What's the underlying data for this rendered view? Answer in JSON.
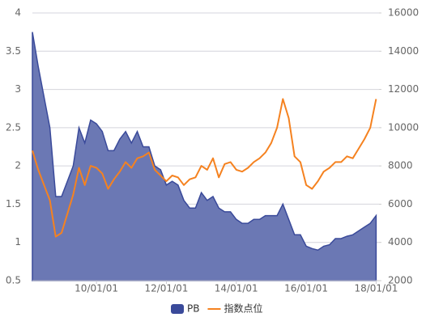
{
  "chart_data": {
    "type": "area-line",
    "x": [
      "08/03/01",
      "08/05/01",
      "08/07/01",
      "08/09/01",
      "08/11/01",
      "09/01/01",
      "09/03/01",
      "09/05/01",
      "09/07/01",
      "09/09/01",
      "09/11/01",
      "10/01/01",
      "10/03/01",
      "10/05/01",
      "10/07/01",
      "10/09/01",
      "10/11/01",
      "11/01/01",
      "11/03/01",
      "11/05/01",
      "11/07/01",
      "11/09/01",
      "11/11/01",
      "12/01/01",
      "12/03/01",
      "12/05/01",
      "12/07/01",
      "12/09/01",
      "12/11/01",
      "13/01/01",
      "13/03/01",
      "13/05/01",
      "13/07/01",
      "13/09/01",
      "13/11/01",
      "14/01/01",
      "14/03/01",
      "14/05/01",
      "14/07/01",
      "14/09/01",
      "14/11/01",
      "15/01/01",
      "15/03/01",
      "15/05/01",
      "15/07/01",
      "15/09/01",
      "15/11/01",
      "16/01/01",
      "16/03/01",
      "16/05/01",
      "16/07/01",
      "16/09/01",
      "16/11/01",
      "17/01/01",
      "17/03/01",
      "17/05/01",
      "17/07/01",
      "17/09/01",
      "17/11/01",
      "18/01/01"
    ],
    "series": [
      {
        "name": "PB",
        "color": "#3a4a9a",
        "fill": "#6b78b4",
        "axis": "y",
        "values": [
          3.75,
          3.3,
          2.9,
          2.5,
          1.6,
          1.6,
          1.8,
          2.0,
          2.5,
          2.3,
          2.6,
          2.55,
          2.45,
          2.2,
          2.2,
          2.35,
          2.45,
          2.3,
          2.45,
          2.25,
          2.25,
          2.0,
          1.95,
          1.75,
          1.8,
          1.75,
          1.55,
          1.45,
          1.45,
          1.65,
          1.55,
          1.6,
          1.45,
          1.4,
          1.4,
          1.3,
          1.25,
          1.25,
          1.3,
          1.3,
          1.35,
          1.35,
          1.35,
          1.5,
          1.3,
          1.1,
          1.1,
          0.95,
          0.92,
          0.9,
          0.95,
          0.97,
          1.05,
          1.05,
          1.08,
          1.1,
          1.15,
          1.2,
          1.25,
          1.35
        ]
      },
      {
        "name": "指数点位",
        "color": "#f58220",
        "axis": "y2",
        "values": [
          8800,
          7800,
          7000,
          6200,
          4300,
          4500,
          5500,
          6500,
          7900,
          7000,
          8000,
          7900,
          7600,
          6800,
          7300,
          7700,
          8200,
          7900,
          8400,
          8500,
          8700,
          7800,
          7500,
          7200,
          7500,
          7400,
          7000,
          7300,
          7400,
          8000,
          7800,
          8400,
          7400,
          8100,
          8200,
          7800,
          7700,
          7900,
          8200,
          8400,
          8700,
          9200,
          10000,
          11500,
          10500,
          8500,
          8200,
          7000,
          6800,
          7200,
          7700,
          7900,
          8200,
          8200,
          8500,
          8400,
          8900,
          9400,
          10000,
          11500
        ]
      }
    ],
    "xlim": [
      "08/03/01",
      "18/02/01"
    ],
    "xticks": [
      "10/01/01",
      "12/01/01",
      "14/01/01",
      "16/01/01",
      "18/01/01"
    ],
    "ylim": [
      0.5,
      4
    ],
    "yticks": [
      0.5,
      1,
      1.5,
      2,
      2.5,
      3,
      3.5,
      4
    ],
    "y2lim": [
      2000,
      16000
    ],
    "y2ticks": [
      2000,
      4000,
      6000,
      8000,
      10000,
      12000,
      14000,
      16000
    ],
    "grid": true,
    "legend": "bottom"
  }
}
